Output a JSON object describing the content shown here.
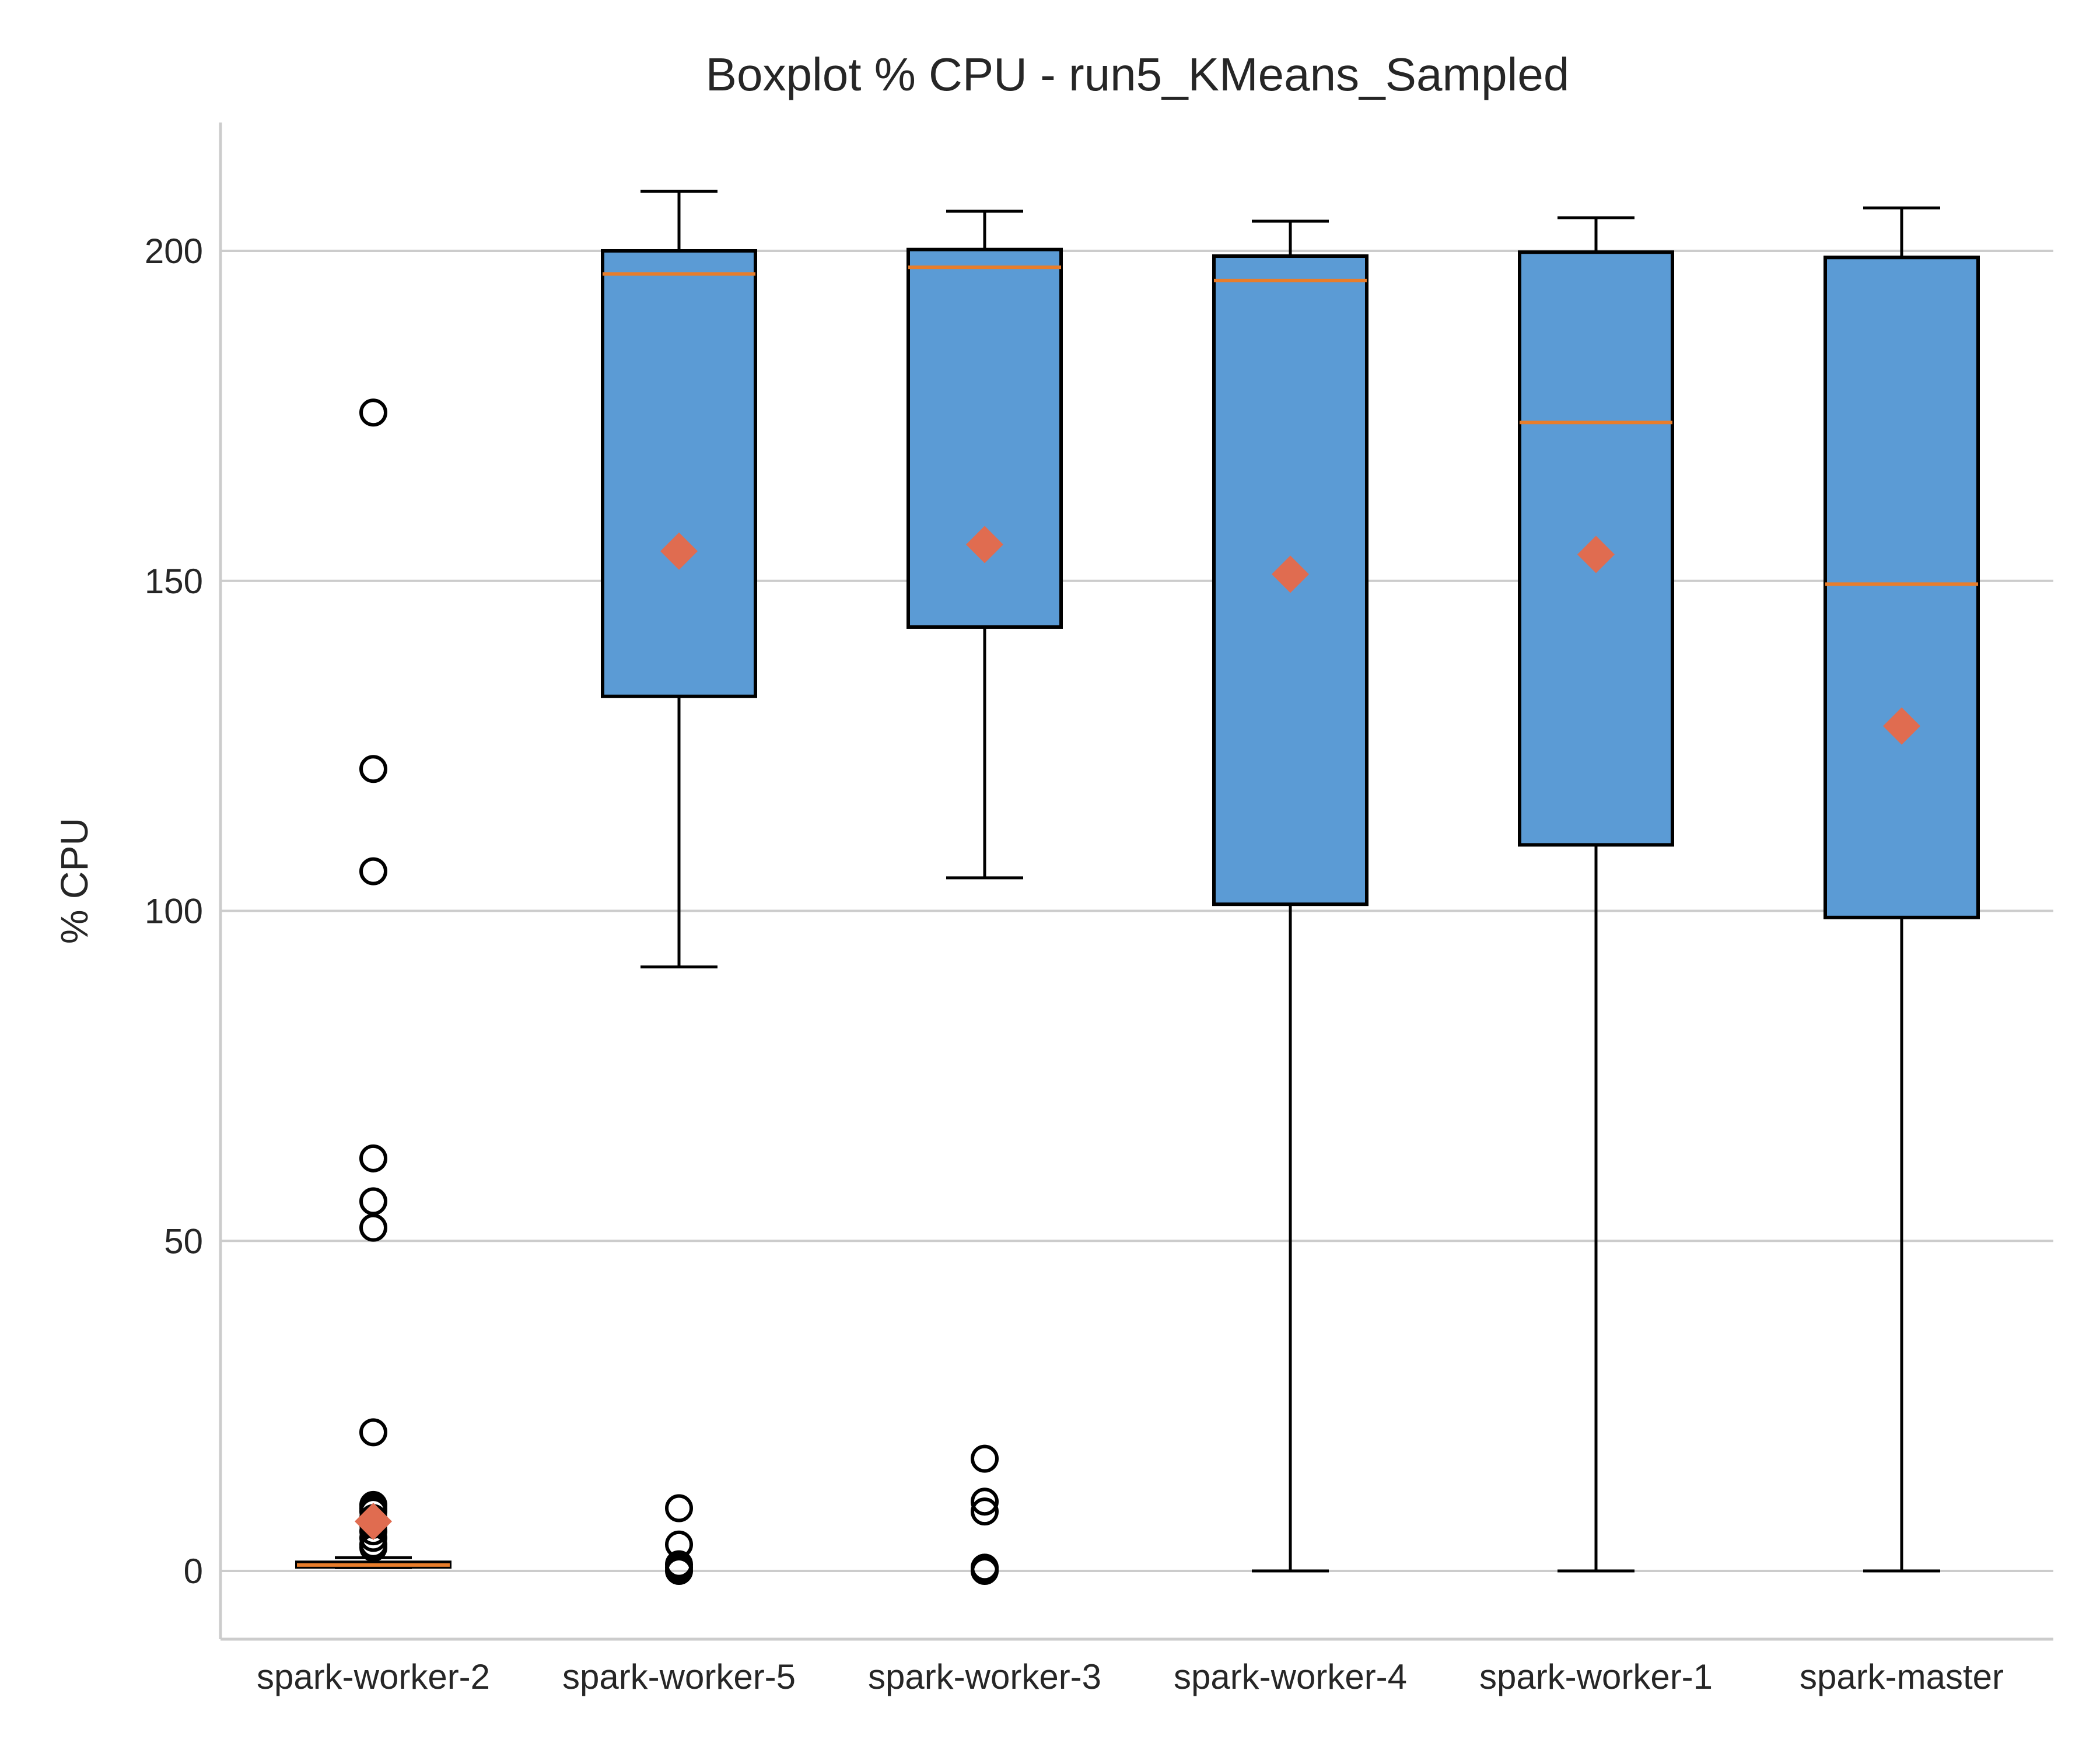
{
  "chart_data": {
    "type": "box",
    "title": "Boxplot % CPU - run5_KMeans_Sampled",
    "xlabel": "",
    "ylabel": "% CPU",
    "ylim": [
      -10,
      220
    ],
    "yticks": [
      0,
      50,
      100,
      150,
      200
    ],
    "grid": "horizontal",
    "colors": {
      "box_fill": "#5b9bd5",
      "median": "#e87d2b",
      "mean_marker": "#e06c50"
    },
    "categories": [
      "spark-worker-2",
      "spark-worker-5",
      "spark-worker-3",
      "spark-worker-4",
      "spark-worker-1",
      "spark-master"
    ],
    "boxes": [
      {
        "name": "spark-worker-2",
        "whislo": 0.5,
        "q1": 0.6,
        "median": 0.9,
        "q3": 1.3,
        "whishi": 2.0,
        "mean": 7.5,
        "fliers": [
          175.5,
          121.5,
          106,
          62.5,
          56,
          52,
          21,
          10,
          9.5,
          9,
          8,
          7,
          6,
          5,
          4,
          3.5
        ]
      },
      {
        "name": "spark-worker-5",
        "whislo": 91.5,
        "q1": 132.5,
        "median": 196.5,
        "q3": 200,
        "whishi": 209,
        "mean": 154.5,
        "fliers": [
          9.5,
          4,
          1,
          0.5,
          0
        ]
      },
      {
        "name": "spark-worker-3",
        "whislo": 105,
        "q1": 143,
        "median": 197.5,
        "q3": 200.2,
        "whishi": 206,
        "mean": 155.5,
        "fliers": [
          17,
          10.5,
          9,
          0.5,
          0
        ]
      },
      {
        "name": "spark-worker-4",
        "whislo": 0,
        "q1": 101,
        "median": 195.5,
        "q3": 199.2,
        "whishi": 204.5,
        "mean": 151,
        "fliers": []
      },
      {
        "name": "spark-worker-1",
        "whislo": 0,
        "q1": 110,
        "median": 174,
        "q3": 199.8,
        "whishi": 205,
        "mean": 154,
        "fliers": []
      },
      {
        "name": "spark-master",
        "whislo": 0,
        "q1": 99,
        "median": 149.5,
        "q3": 199,
        "whishi": 206.5,
        "mean": 128,
        "fliers": []
      }
    ]
  }
}
